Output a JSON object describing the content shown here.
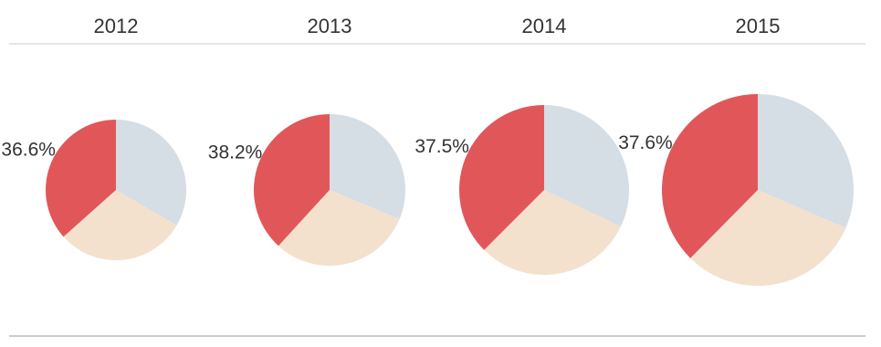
{
  "chart_data": [
    {
      "type": "pie",
      "title": "2012",
      "values": [
        33.4,
        30.0,
        36.6
      ],
      "value_labels": [
        null,
        null,
        "36.6%"
      ],
      "colors": [
        "#d5dde5",
        "#f3e1cd",
        "#e15759"
      ]
    },
    {
      "type": "pie",
      "title": "2013",
      "values": [
        31.3,
        30.5,
        38.2
      ],
      "value_labels": [
        null,
        null,
        "38.2%"
      ],
      "colors": [
        "#d5dde5",
        "#f3e1cd",
        "#e15759"
      ]
    },
    {
      "type": "pie",
      "title": "2014",
      "values": [
        32.1,
        30.4,
        37.5
      ],
      "value_labels": [
        null,
        null,
        "37.5%"
      ],
      "colors": [
        "#d5dde5",
        "#f3e1cd",
        "#e15759"
      ]
    },
    {
      "type": "pie",
      "title": "2015",
      "values": [
        31.5,
        30.9,
        37.6
      ],
      "value_labels": [
        null,
        null,
        "37.6%"
      ],
      "colors": [
        "#d5dde5",
        "#f3e1cd",
        "#e15759"
      ]
    }
  ]
}
